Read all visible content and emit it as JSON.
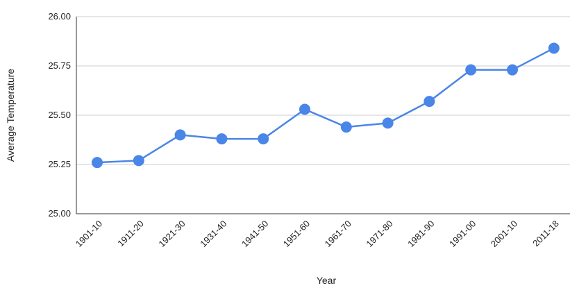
{
  "chart_data": {
    "type": "line",
    "title": "",
    "xlabel": "Year",
    "ylabel": "Average Temperature",
    "categories": [
      "1901-10",
      "1911-20",
      "1921-30",
      "1931-40",
      "1941-50",
      "1951-60",
      "1961-70",
      "1971-80",
      "1981-90",
      "1991-00",
      "2001-10",
      "2011-18"
    ],
    "series": [
      {
        "values": [
          25.26,
          25.27,
          25.4,
          25.38,
          25.38,
          25.53,
          25.44,
          25.46,
          25.57,
          25.73,
          25.73,
          25.84
        ]
      }
    ],
    "ylim": [
      25.0,
      26.0
    ],
    "yticks": [
      "25.00",
      "25.25",
      "25.50",
      "25.75",
      "26.00"
    ],
    "grid": true,
    "line_color": "#4a86e8"
  }
}
